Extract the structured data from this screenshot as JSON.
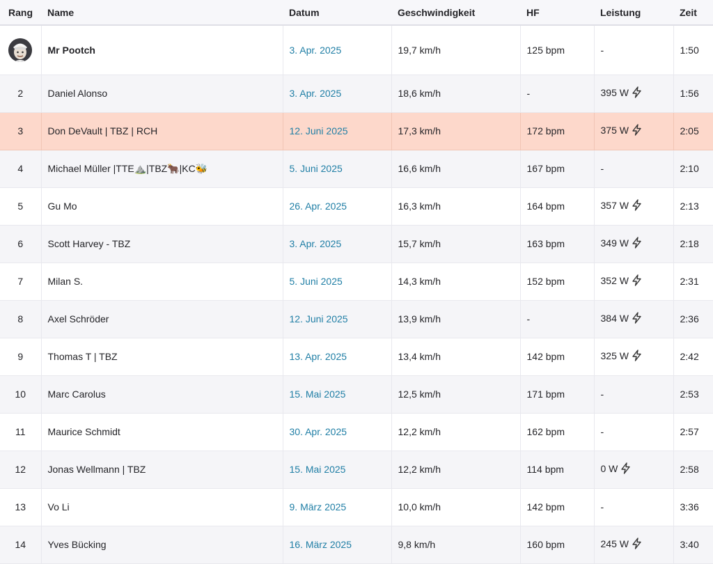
{
  "columns": {
    "rank": "Rang",
    "name": "Name",
    "date": "Datum",
    "speed": "Geschwindigkeit",
    "hf": "HF",
    "power": "Leistung",
    "time": "Zeit"
  },
  "first": {
    "avatar_icon": "athlete-avatar-icon",
    "name": "Mr Pootch",
    "date": "3. Apr. 2025",
    "speed": "19,7 km/h",
    "hf": "125 bpm",
    "power": "-",
    "time": "1:50"
  },
  "rows": [
    {
      "rank": "2",
      "name": "Daniel Alonso",
      "date": "3. Apr. 2025",
      "speed": "18,6 km/h",
      "hf": "-",
      "power": "395 W",
      "power_icon": true,
      "time": "1:56"
    },
    {
      "rank": "3",
      "name": "Don DeVault | TBZ | RCH",
      "date": "12. Juni 2025",
      "speed": "17,3 km/h",
      "hf": "172 bpm",
      "power": "375 W",
      "power_icon": true,
      "time": "2:05",
      "highlight": true
    },
    {
      "rank": "4",
      "name": "Michael Müller |TTE⛰️|TBZ🐂|KC🐝",
      "date": "5. Juni 2025",
      "speed": "16,6 km/h",
      "hf": "167 bpm",
      "power": "-",
      "power_icon": false,
      "time": "2:10"
    },
    {
      "rank": "5",
      "name": "Gu Mo",
      "date": "26. Apr. 2025",
      "speed": "16,3 km/h",
      "hf": "164 bpm",
      "power": "357 W",
      "power_icon": true,
      "time": "2:13"
    },
    {
      "rank": "6",
      "name": "Scott Harvey - TBZ",
      "date": "3. Apr. 2025",
      "speed": "15,7 km/h",
      "hf": "163 bpm",
      "power": "349 W",
      "power_icon": true,
      "time": "2:18"
    },
    {
      "rank": "7",
      "name": "Milan S.",
      "date": "5. Juni 2025",
      "speed": "14,3 km/h",
      "hf": "152 bpm",
      "power": "352 W",
      "power_icon": true,
      "time": "2:31"
    },
    {
      "rank": "8",
      "name": "Axel Schröder",
      "date": "12. Juni 2025",
      "speed": "13,9 km/h",
      "hf": "-",
      "power": "384 W",
      "power_icon": true,
      "time": "2:36"
    },
    {
      "rank": "9",
      "name": "Thomas T | TBZ",
      "date": "13. Apr. 2025",
      "speed": "13,4 km/h",
      "hf": "142 bpm",
      "power": "325 W",
      "power_icon": true,
      "time": "2:42"
    },
    {
      "rank": "10",
      "name": "Marc Carolus",
      "date": "15. Mai 2025",
      "speed": "12,5 km/h",
      "hf": "171 bpm",
      "power": "-",
      "power_icon": false,
      "time": "2:53"
    },
    {
      "rank": "11",
      "name": "Maurice Schmidt",
      "date": "30. Apr. 2025",
      "speed": "12,2 km/h",
      "hf": "162 bpm",
      "power": "-",
      "power_icon": false,
      "time": "2:57"
    },
    {
      "rank": "12",
      "name": "Jonas Wellmann | TBZ",
      "date": "15. Mai 2025",
      "speed": "12,2 km/h",
      "hf": "114 bpm",
      "power": "0 W",
      "power_icon": true,
      "time": "2:58"
    },
    {
      "rank": "13",
      "name": "Vo Li",
      "date": "9. März 2025",
      "speed": "10,0 km/h",
      "hf": "142 bpm",
      "power": "-",
      "power_icon": false,
      "time": "3:36"
    },
    {
      "rank": "14",
      "name": "Yves Bücking",
      "date": "16. März 2025",
      "speed": "9,8 km/h",
      "hf": "160 bpm",
      "power": "245 W",
      "power_icon": true,
      "time": "3:40"
    }
  ],
  "colors": {
    "link": "#1f7ea5",
    "highlight_row": "#fdd8cb",
    "zebra_row": "#f5f5f8",
    "header_bg": "#f7f7fa"
  },
  "icons": {
    "power": "lightning-bolt-icon"
  }
}
